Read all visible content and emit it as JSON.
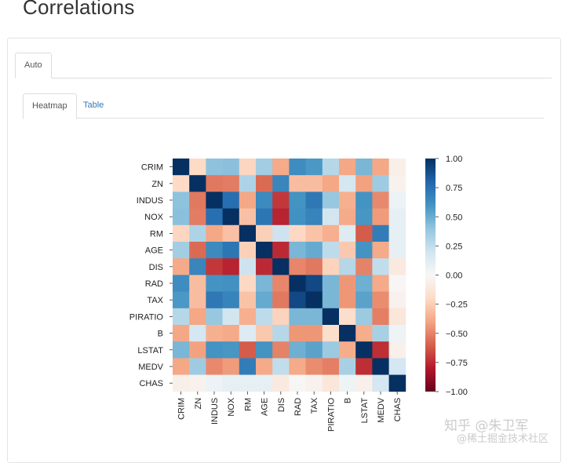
{
  "page": {
    "title": "Correlations"
  },
  "tabs_outer": [
    {
      "label": "Auto",
      "active": true
    }
  ],
  "tabs_inner": [
    {
      "label": "Heatmap",
      "active": true
    },
    {
      "label": "Table",
      "active": false
    }
  ],
  "watermark": {
    "line1": "知乎 @朱卫军",
    "line2": "@稀土掘金技术社区"
  },
  "chart_data": {
    "type": "heatmap",
    "title": "",
    "variables": [
      "CRIM",
      "ZN",
      "INDUS",
      "NOX",
      "RM",
      "AGE",
      "DIS",
      "RAD",
      "TAX",
      "PIRATIO",
      "B",
      "LSTAT",
      "MEDV",
      "CHAS"
    ],
    "column_labels": [
      "CRIM",
      "ZN",
      "INDUS",
      "NOX",
      "RM",
      "AGE",
      "DIS",
      "RAD",
      "TAX",
      "PIRATIO",
      "B",
      "LSTAT",
      "MEDV",
      "CHAS"
    ],
    "values": [
      [
        1.0,
        -0.2,
        0.41,
        0.42,
        -0.22,
        0.35,
        -0.38,
        0.63,
        0.58,
        0.29,
        -0.39,
        0.46,
        -0.39,
        -0.06
      ],
      [
        -0.2,
        1.0,
        -0.53,
        -0.52,
        0.31,
        -0.57,
        0.66,
        -0.31,
        -0.31,
        -0.39,
        0.18,
        -0.41,
        0.36,
        -0.04
      ],
      [
        0.41,
        -0.53,
        1.0,
        0.76,
        -0.39,
        0.64,
        -0.71,
        0.6,
        0.72,
        0.38,
        -0.36,
        0.6,
        -0.48,
        0.06
      ],
      [
        0.42,
        -0.52,
        0.76,
        1.0,
        -0.3,
        0.73,
        -0.77,
        0.61,
        0.67,
        0.19,
        -0.38,
        0.59,
        -0.43,
        0.09
      ],
      [
        -0.22,
        0.31,
        -0.39,
        -0.3,
        1.0,
        -0.24,
        0.21,
        -0.21,
        -0.29,
        -0.36,
        0.13,
        -0.61,
        0.7,
        0.09
      ],
      [
        0.35,
        -0.57,
        0.64,
        0.73,
        -0.24,
        1.0,
        -0.75,
        0.46,
        0.51,
        0.26,
        -0.27,
        0.6,
        -0.38,
        0.09
      ],
      [
        -0.38,
        0.66,
        -0.71,
        -0.77,
        0.21,
        -0.75,
        1.0,
        -0.49,
        -0.53,
        -0.23,
        0.29,
        -0.5,
        0.25,
        -0.1
      ],
      [
        0.63,
        -0.31,
        0.6,
        0.61,
        -0.21,
        0.46,
        -0.49,
        1.0,
        0.91,
        0.46,
        -0.44,
        0.49,
        -0.38,
        -0.01
      ],
      [
        0.58,
        -0.31,
        0.72,
        0.67,
        -0.29,
        0.51,
        -0.53,
        0.91,
        1.0,
        0.46,
        -0.44,
        0.54,
        -0.47,
        -0.04
      ],
      [
        0.29,
        -0.39,
        0.38,
        0.19,
        -0.36,
        0.26,
        -0.23,
        0.46,
        0.46,
        1.0,
        -0.18,
        0.37,
        -0.51,
        -0.12
      ],
      [
        -0.39,
        0.18,
        -0.36,
        -0.38,
        0.13,
        -0.27,
        0.29,
        -0.44,
        -0.44,
        -0.18,
        1.0,
        -0.37,
        0.33,
        0.05
      ],
      [
        0.46,
        -0.41,
        0.6,
        0.59,
        -0.61,
        0.6,
        -0.5,
        0.49,
        0.54,
        0.37,
        -0.37,
        1.0,
        -0.74,
        -0.05
      ],
      [
        -0.39,
        0.36,
        -0.48,
        -0.43,
        0.7,
        -0.38,
        0.25,
        -0.38,
        -0.47,
        -0.51,
        0.33,
        -0.74,
        1.0,
        0.18
      ],
      [
        -0.06,
        -0.04,
        0.06,
        0.09,
        0.09,
        0.09,
        -0.1,
        -0.01,
        -0.04,
        -0.12,
        0.05,
        -0.05,
        0.18,
        1.0
      ]
    ],
    "vmin": -1.0,
    "vmax": 1.0,
    "colorbar_ticks": [
      "1.00",
      "0.75",
      "0.50",
      "0.25",
      "0.00",
      "−0.25",
      "−0.50",
      "−0.75",
      "−1.00"
    ],
    "colormap": "RdBu",
    "colormap_stops": [
      "#67001f",
      "#b2182b",
      "#d6604d",
      "#f4a582",
      "#fddbc7",
      "#f7f7f7",
      "#d1e5f0",
      "#92c5de",
      "#4393c3",
      "#2166ac",
      "#053061"
    ]
  }
}
